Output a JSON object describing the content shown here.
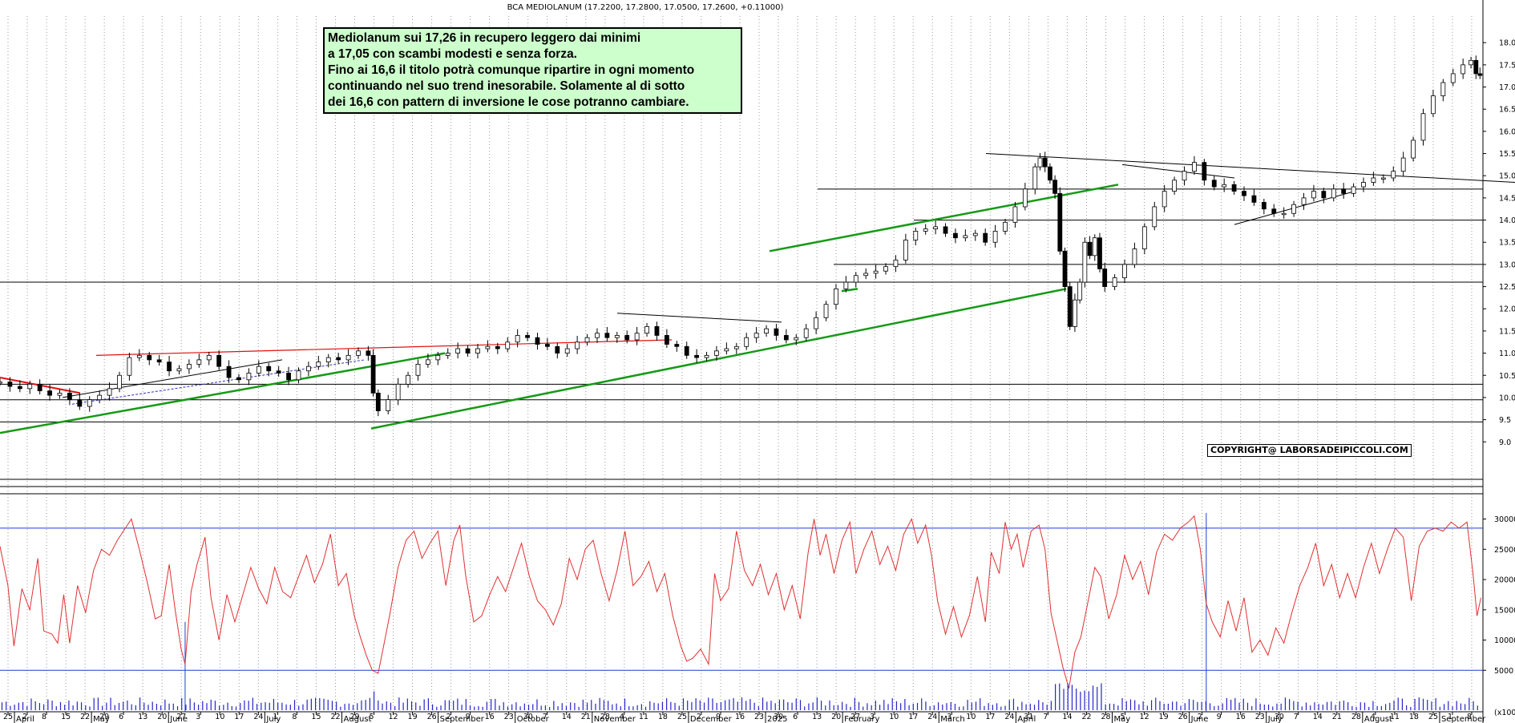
{
  "chart_data": {
    "type": "candlestick",
    "title": "BCA MEDIOLANUM (17.2200, 17.2800, 17.0500, 17.2600, +0.11000)",
    "note_lines": [
      "Mediolanum sui 17,26 in recupero leggero dai minimi",
      "a 17,05 con scambi modesti e senza forza.",
      "Fino ai 16,6 il titolo potrà comunque ripartire in ogni momento",
      "continuando nel suo trend inesorabile. Solamente al di sotto",
      "dei 16,6 con pattern di inversione le cose potranno cambiare."
    ],
    "copyright": "COPYRIGHT@ LABORSADEIPICCOLI.COM",
    "price_axis": {
      "ylim": [
        8.3,
        18.6
      ],
      "ticks": [
        "18.0",
        "17.5",
        "17.0",
        "16.5",
        "16.0",
        "15.5",
        "15.0",
        "14.5",
        "14.0",
        "13.5",
        "13.0",
        "12.5",
        "12.0",
        "11.5",
        "11.0",
        "10.5",
        "10.0",
        "9.5",
        "9.0"
      ]
    },
    "oscillator_axis": {
      "ylim": [
        0,
        31000
      ],
      "ticks": [
        "30000",
        "25000",
        "20000",
        "15000",
        "10000",
        "5000"
      ],
      "unit_label": "(x1000)"
    },
    "x_day_labels": [
      "25",
      "2",
      "8",
      "15",
      "22",
      "29",
      "6",
      "13",
      "20",
      "27",
      "3",
      "10",
      "17",
      "24",
      "1",
      "8",
      "15",
      "22",
      "29",
      "5",
      "12",
      "19",
      "26",
      "2",
      "9",
      "16",
      "23",
      "30",
      "7",
      "14",
      "21",
      "28",
      "4",
      "11",
      "18",
      "25",
      "2",
      "9",
      "16",
      "23",
      "30",
      "6",
      "13",
      "20",
      "27",
      "3",
      "10",
      "17",
      "24",
      "3",
      "10",
      "17",
      "24",
      "31",
      "7",
      "14",
      "22",
      "28",
      "5",
      "12",
      "19",
      "26",
      "2",
      "9",
      "16",
      "23",
      "30",
      "7",
      "14",
      "21",
      "28",
      "4",
      "11",
      "18",
      "25",
      "1",
      "8"
    ],
    "x_month_labels": [
      "April",
      "May",
      "June",
      "July",
      "August",
      "September",
      "October",
      "November",
      "December",
      "2025",
      "February",
      "March",
      "April",
      "May",
      "June",
      "July",
      "August",
      "September"
    ],
    "price_path": [
      [
        0,
        10.35
      ],
      [
        10,
        10.25
      ],
      [
        20,
        10.2
      ],
      [
        30,
        10.3
      ],
      [
        40,
        10.15
      ],
      [
        50,
        10.05
      ],
      [
        60,
        10.1
      ],
      [
        70,
        9.95
      ],
      [
        80,
        9.8
      ],
      [
        90,
        9.95
      ],
      [
        100,
        10.05
      ],
      [
        110,
        10.2
      ],
      [
        120,
        10.5
      ],
      [
        130,
        10.9
      ],
      [
        140,
        10.95
      ],
      [
        150,
        10.85
      ],
      [
        160,
        10.8
      ],
      [
        170,
        10.6
      ],
      [
        180,
        10.65
      ],
      [
        190,
        10.75
      ],
      [
        200,
        10.85
      ],
      [
        210,
        10.95
      ],
      [
        220,
        10.7
      ],
      [
        230,
        10.45
      ],
      [
        240,
        10.4
      ],
      [
        250,
        10.55
      ],
      [
        260,
        10.7
      ],
      [
        270,
        10.6
      ],
      [
        280,
        10.55
      ],
      [
        290,
        10.4
      ],
      [
        300,
        10.6
      ],
      [
        310,
        10.7
      ],
      [
        320,
        10.8
      ],
      [
        330,
        10.9
      ],
      [
        340,
        10.85
      ],
      [
        350,
        10.95
      ],
      [
        360,
        11.05
      ],
      [
        370,
        10.95
      ],
      [
        375,
        10.1
      ],
      [
        380,
        9.7
      ],
      [
        390,
        9.95
      ],
      [
        400,
        10.3
      ],
      [
        410,
        10.5
      ],
      [
        420,
        10.75
      ],
      [
        430,
        10.85
      ],
      [
        440,
        10.95
      ],
      [
        450,
        11.0
      ],
      [
        460,
        11.1
      ],
      [
        470,
        11.0
      ],
      [
        480,
        11.1
      ],
      [
        490,
        11.15
      ],
      [
        500,
        11.1
      ],
      [
        510,
        11.25
      ],
      [
        520,
        11.4
      ],
      [
        530,
        11.35
      ],
      [
        540,
        11.2
      ],
      [
        550,
        11.15
      ],
      [
        560,
        11.0
      ],
      [
        570,
        11.1
      ],
      [
        580,
        11.25
      ],
      [
        590,
        11.35
      ],
      [
        600,
        11.45
      ],
      [
        610,
        11.35
      ],
      [
        620,
        11.4
      ],
      [
        630,
        11.3
      ],
      [
        640,
        11.45
      ],
      [
        650,
        11.6
      ],
      [
        660,
        11.4
      ],
      [
        670,
        11.2
      ],
      [
        680,
        11.15
      ],
      [
        690,
        10.95
      ],
      [
        700,
        10.9
      ],
      [
        710,
        10.95
      ],
      [
        720,
        11.05
      ],
      [
        730,
        11.1
      ],
      [
        740,
        11.15
      ],
      [
        750,
        11.35
      ],
      [
        760,
        11.45
      ],
      [
        770,
        11.55
      ],
      [
        780,
        11.4
      ],
      [
        790,
        11.3
      ],
      [
        800,
        11.35
      ],
      [
        810,
        11.55
      ],
      [
        820,
        11.8
      ],
      [
        830,
        12.1
      ],
      [
        840,
        12.45
      ],
      [
        850,
        12.6
      ],
      [
        860,
        12.75
      ],
      [
        870,
        12.8
      ],
      [
        880,
        12.85
      ],
      [
        890,
        12.95
      ],
      [
        900,
        13.1
      ],
      [
        910,
        13.55
      ],
      [
        920,
        13.75
      ],
      [
        930,
        13.8
      ],
      [
        940,
        13.85
      ],
      [
        950,
        13.7
      ],
      [
        960,
        13.6
      ],
      [
        970,
        13.65
      ],
      [
        980,
        13.7
      ],
      [
        990,
        13.5
      ],
      [
        1000,
        13.75
      ],
      [
        1010,
        13.95
      ],
      [
        1020,
        14.3
      ],
      [
        1030,
        14.7
      ],
      [
        1040,
        15.2
      ],
      [
        1045,
        15.4
      ],
      [
        1050,
        15.2
      ],
      [
        1055,
        14.9
      ],
      [
        1060,
        14.6
      ],
      [
        1065,
        13.3
      ],
      [
        1070,
        12.5
      ],
      [
        1075,
        11.6
      ],
      [
        1080,
        12.2
      ],
      [
        1085,
        12.6
      ],
      [
        1090,
        13.5
      ],
      [
        1095,
        13.2
      ],
      [
        1100,
        13.6
      ],
      [
        1105,
        12.9
      ],
      [
        1110,
        12.5
      ],
      [
        1120,
        12.7
      ],
      [
        1130,
        13.0
      ],
      [
        1140,
        13.35
      ],
      [
        1150,
        13.85
      ],
      [
        1160,
        14.3
      ],
      [
        1170,
        14.65
      ],
      [
        1180,
        14.9
      ],
      [
        1190,
        15.1
      ],
      [
        1200,
        15.3
      ],
      [
        1210,
        14.9
      ],
      [
        1220,
        14.75
      ],
      [
        1230,
        14.8
      ],
      [
        1240,
        14.65
      ],
      [
        1250,
        14.55
      ],
      [
        1260,
        14.4
      ],
      [
        1270,
        14.25
      ],
      [
        1280,
        14.15
      ],
      [
        1290,
        14.15
      ],
      [
        1300,
        14.35
      ],
      [
        1310,
        14.5
      ],
      [
        1320,
        14.65
      ],
      [
        1330,
        14.5
      ],
      [
        1340,
        14.7
      ],
      [
        1350,
        14.6
      ],
      [
        1360,
        14.75
      ],
      [
        1370,
        14.85
      ],
      [
        1380,
        14.95
      ],
      [
        1390,
        14.95
      ],
      [
        1400,
        15.1
      ],
      [
        1410,
        15.4
      ],
      [
        1420,
        15.8
      ],
      [
        1430,
        16.4
      ],
      [
        1440,
        16.8
      ],
      [
        1450,
        17.1
      ],
      [
        1460,
        17.3
      ],
      [
        1470,
        17.5
      ],
      [
        1478,
        17.6
      ],
      [
        1483,
        17.3
      ],
      [
        1487,
        17.26
      ]
    ],
    "horizontal_levels": [
      14.7,
      14.0,
      13.0,
      12.6,
      10.3,
      9.95,
      9.45
    ],
    "oscillator_path": [
      [
        0,
        25500
      ],
      [
        8,
        19000
      ],
      [
        14,
        9000
      ],
      [
        22,
        18500
      ],
      [
        30,
        15000
      ],
      [
        38,
        23500
      ],
      [
        44,
        11500
      ],
      [
        52,
        11000
      ],
      [
        58,
        9500
      ],
      [
        64,
        17500
      ],
      [
        70,
        9500
      ],
      [
        78,
        19000
      ],
      [
        86,
        14500
      ],
      [
        94,
        21500
      ],
      [
        102,
        25000
      ],
      [
        110,
        24000
      ],
      [
        118,
        26500
      ],
      [
        126,
        28500
      ],
      [
        132,
        30000
      ],
      [
        140,
        25000
      ],
      [
        148,
        19500
      ],
      [
        156,
        13500
      ],
      [
        162,
        14000
      ],
      [
        170,
        22500
      ],
      [
        176,
        15000
      ],
      [
        182,
        8500
      ],
      [
        186,
        6000
      ],
      [
        192,
        18000
      ],
      [
        198,
        22500
      ],
      [
        206,
        27000
      ],
      [
        212,
        17000
      ],
      [
        220,
        10000
      ],
      [
        228,
        17500
      ],
      [
        236,
        13000
      ],
      [
        244,
        17500
      ],
      [
        252,
        22000
      ],
      [
        260,
        18500
      ],
      [
        268,
        16000
      ],
      [
        276,
        22000
      ],
      [
        284,
        18000
      ],
      [
        292,
        17000
      ],
      [
        300,
        20500
      ],
      [
        308,
        24000
      ],
      [
        316,
        19500
      ],
      [
        324,
        22500
      ],
      [
        332,
        27500
      ],
      [
        340,
        19000
      ],
      [
        348,
        21000
      ],
      [
        356,
        14000
      ],
      [
        362,
        10500
      ],
      [
        368,
        7500
      ],
      [
        374,
        5000
      ],
      [
        380,
        4500
      ],
      [
        386,
        9500
      ],
      [
        392,
        14500
      ],
      [
        400,
        22000
      ],
      [
        408,
        26500
      ],
      [
        416,
        28000
      ],
      [
        424,
        23500
      ],
      [
        432,
        26000
      ],
      [
        440,
        28000
      ],
      [
        448,
        19000
      ],
      [
        456,
        26500
      ],
      [
        462,
        29000
      ],
      [
        468,
        20500
      ],
      [
        476,
        13000
      ],
      [
        484,
        14000
      ],
      [
        492,
        17500
      ],
      [
        500,
        20500
      ],
      [
        508,
        18000
      ],
      [
        516,
        22000
      ],
      [
        524,
        26000
      ],
      [
        532,
        20500
      ],
      [
        540,
        16500
      ],
      [
        548,
        15000
      ],
      [
        556,
        12500
      ],
      [
        564,
        16000
      ],
      [
        572,
        23500
      ],
      [
        580,
        20000
      ],
      [
        588,
        25000
      ],
      [
        596,
        26500
      ],
      [
        604,
        21000
      ],
      [
        612,
        16500
      ],
      [
        620,
        21500
      ],
      [
        628,
        28000
      ],
      [
        636,
        19000
      ],
      [
        644,
        20500
      ],
      [
        652,
        23000
      ],
      [
        660,
        18000
      ],
      [
        668,
        21000
      ],
      [
        676,
        14000
      ],
      [
        684,
        9000
      ],
      [
        690,
        6500
      ],
      [
        696,
        7000
      ],
      [
        704,
        8500
      ],
      [
        712,
        6000
      ],
      [
        718,
        21000
      ],
      [
        724,
        16500
      ],
      [
        732,
        18500
      ],
      [
        740,
        28000
      ],
      [
        748,
        21500
      ],
      [
        756,
        19000
      ],
      [
        764,
        22500
      ],
      [
        772,
        17500
      ],
      [
        780,
        21000
      ],
      [
        788,
        15000
      ],
      [
        796,
        19000
      ],
      [
        804,
        13500
      ],
      [
        812,
        24500
      ],
      [
        818,
        30000
      ],
      [
        824,
        24000
      ],
      [
        830,
        27500
      ],
      [
        838,
        21000
      ],
      [
        846,
        26500
      ],
      [
        854,
        29500
      ],
      [
        860,
        21000
      ],
      [
        868,
        25000
      ],
      [
        876,
        28000
      ],
      [
        884,
        22500
      ],
      [
        892,
        25500
      ],
      [
        900,
        21500
      ],
      [
        908,
        27500
      ],
      [
        916,
        30000
      ],
      [
        922,
        26000
      ],
      [
        930,
        29000
      ],
      [
        936,
        24000
      ],
      [
        942,
        16500
      ],
      [
        950,
        11000
      ],
      [
        958,
        15500
      ],
      [
        966,
        10500
      ],
      [
        974,
        14000
      ],
      [
        982,
        20500
      ],
      [
        990,
        13000
      ],
      [
        996,
        24500
      ],
      [
        1004,
        21000
      ],
      [
        1010,
        29500
      ],
      [
        1016,
        25000
      ],
      [
        1022,
        27500
      ],
      [
        1028,
        22000
      ],
      [
        1036,
        28000
      ],
      [
        1044,
        29000
      ],
      [
        1050,
        25000
      ],
      [
        1056,
        14500
      ],
      [
        1062,
        10000
      ],
      [
        1068,
        5500
      ],
      [
        1074,
        2000
      ],
      [
        1080,
        8000
      ],
      [
        1086,
        10500
      ],
      [
        1094,
        17000
      ],
      [
        1100,
        22000
      ],
      [
        1106,
        20500
      ],
      [
        1114,
        13500
      ],
      [
        1122,
        17500
      ],
      [
        1130,
        24000
      ],
      [
        1138,
        20000
      ],
      [
        1146,
        23000
      ],
      [
        1154,
        17500
      ],
      [
        1162,
        24500
      ],
      [
        1170,
        27500
      ],
      [
        1178,
        26500
      ],
      [
        1186,
        28500
      ],
      [
        1194,
        29500
      ],
      [
        1200,
        30500
      ],
      [
        1206,
        25000
      ],
      [
        1212,
        16000
      ],
      [
        1218,
        13000
      ],
      [
        1226,
        10500
      ],
      [
        1234,
        16500
      ],
      [
        1242,
        11500
      ],
      [
        1250,
        17000
      ],
      [
        1258,
        8000
      ],
      [
        1266,
        10000
      ],
      [
        1274,
        7500
      ],
      [
        1282,
        12000
      ],
      [
        1290,
        9500
      ],
      [
        1298,
        14500
      ],
      [
        1306,
        19000
      ],
      [
        1314,
        22000
      ],
      [
        1322,
        26000
      ],
      [
        1330,
        19000
      ],
      [
        1338,
        22500
      ],
      [
        1346,
        17000
      ],
      [
        1354,
        21000
      ],
      [
        1362,
        17000
      ],
      [
        1370,
        22000
      ],
      [
        1378,
        26000
      ],
      [
        1386,
        21000
      ],
      [
        1394,
        25000
      ],
      [
        1402,
        28500
      ],
      [
        1410,
        27000
      ],
      [
        1418,
        16500
      ],
      [
        1426,
        25500
      ],
      [
        1434,
        28000
      ],
      [
        1442,
        28500
      ],
      [
        1450,
        28000
      ],
      [
        1458,
        29500
      ],
      [
        1466,
        28500
      ],
      [
        1474,
        29500
      ],
      [
        1480,
        21000
      ],
      [
        1484,
        14000
      ],
      [
        1488,
        17000
      ]
    ]
  }
}
